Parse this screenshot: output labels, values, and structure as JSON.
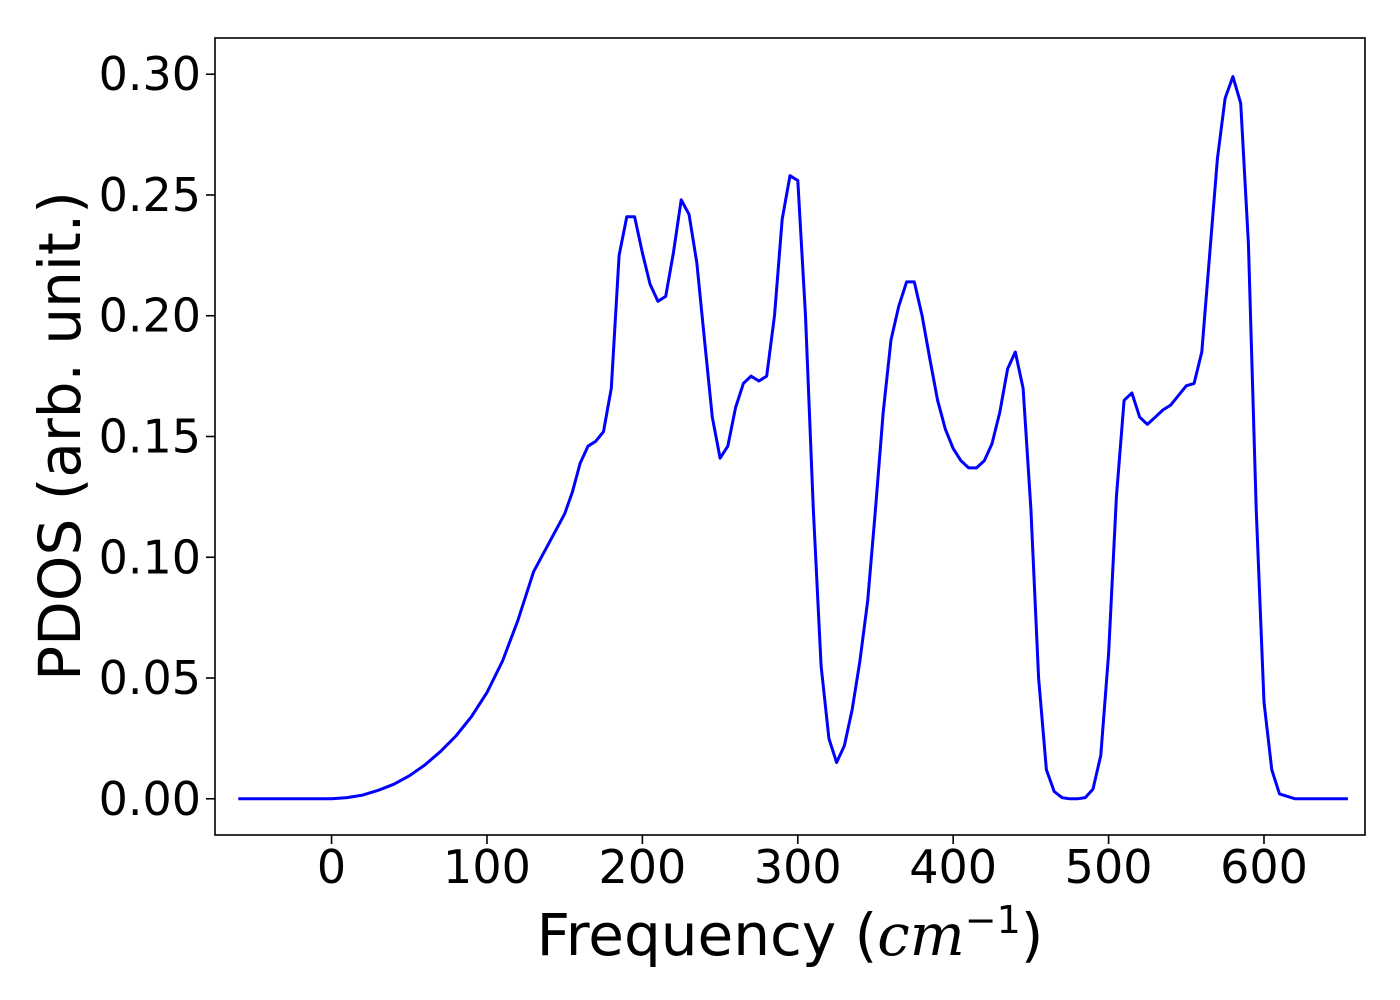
{
  "chart_data": {
    "type": "line",
    "xlabel": {
      "prefix": "Frequency (",
      "math": "cm",
      "superscript": "−1",
      "suffix": ")"
    },
    "ylabel": "PDOS (arb. unit.)",
    "xlim": [
      -75,
      665
    ],
    "ylim": [
      -0.015,
      0.315
    ],
    "x_ticks": [
      0,
      100,
      200,
      300,
      400,
      500,
      600
    ],
    "x_tick_labels": [
      "0",
      "100",
      "200",
      "300",
      "400",
      "500",
      "600"
    ],
    "y_ticks": [
      0.0,
      0.05,
      0.1,
      0.15,
      0.2,
      0.25,
      0.3
    ],
    "y_tick_labels": [
      "0.00",
      "0.05",
      "0.10",
      "0.15",
      "0.20",
      "0.25",
      "0.30"
    ],
    "grid": false,
    "series": [
      {
        "color": "#0000ff",
        "x": [
          -60,
          0,
          10,
          20,
          30,
          40,
          50,
          60,
          70,
          80,
          90,
          100,
          110,
          120,
          130,
          140,
          150,
          155,
          160,
          165,
          170,
          175,
          180,
          185,
          190,
          195,
          200,
          205,
          210,
          215,
          220,
          225,
          230,
          235,
          240,
          245,
          250,
          255,
          260,
          265,
          270,
          275,
          280,
          285,
          290,
          295,
          300,
          305,
          310,
          315,
          320,
          325,
          330,
          335,
          340,
          345,
          350,
          355,
          360,
          365,
          370,
          375,
          380,
          385,
          390,
          395,
          400,
          405,
          410,
          415,
          420,
          425,
          430,
          435,
          440,
          445,
          450,
          455,
          460,
          465,
          470,
          475,
          480,
          485,
          490,
          495,
          500,
          505,
          510,
          515,
          520,
          525,
          530,
          535,
          540,
          545,
          550,
          555,
          560,
          565,
          570,
          575,
          580,
          585,
          590,
          595,
          600,
          605,
          610,
          620,
          654
        ],
        "y": [
          0.0,
          0.0,
          0.0005,
          0.0015,
          0.0035,
          0.006,
          0.0095,
          0.014,
          0.0195,
          0.026,
          0.034,
          0.044,
          0.057,
          0.074,
          0.094,
          0.106,
          0.118,
          0.127,
          0.139,
          0.146,
          0.148,
          0.152,
          0.17,
          0.225,
          0.241,
          0.241,
          0.226,
          0.213,
          0.206,
          0.208,
          0.226,
          0.248,
          0.242,
          0.222,
          0.19,
          0.158,
          0.141,
          0.146,
          0.162,
          0.172,
          0.175,
          0.173,
          0.175,
          0.2,
          0.24,
          0.258,
          0.256,
          0.2,
          0.12,
          0.055,
          0.025,
          0.015,
          0.022,
          0.037,
          0.057,
          0.082,
          0.12,
          0.16,
          0.19,
          0.204,
          0.214,
          0.214,
          0.2,
          0.182,
          0.165,
          0.153,
          0.145,
          0.14,
          0.137,
          0.137,
          0.14,
          0.147,
          0.16,
          0.178,
          0.185,
          0.17,
          0.12,
          0.05,
          0.012,
          0.003,
          0.0005,
          0.0,
          0.0,
          0.0005,
          0.004,
          0.018,
          0.06,
          0.125,
          0.165,
          0.168,
          0.158,
          0.155,
          0.158,
          0.161,
          0.163,
          0.167,
          0.171,
          0.172,
          0.185,
          0.225,
          0.265,
          0.29,
          0.299,
          0.288,
          0.23,
          0.12,
          0.04,
          0.012,
          0.002,
          0.0,
          0.0
        ]
      }
    ]
  }
}
